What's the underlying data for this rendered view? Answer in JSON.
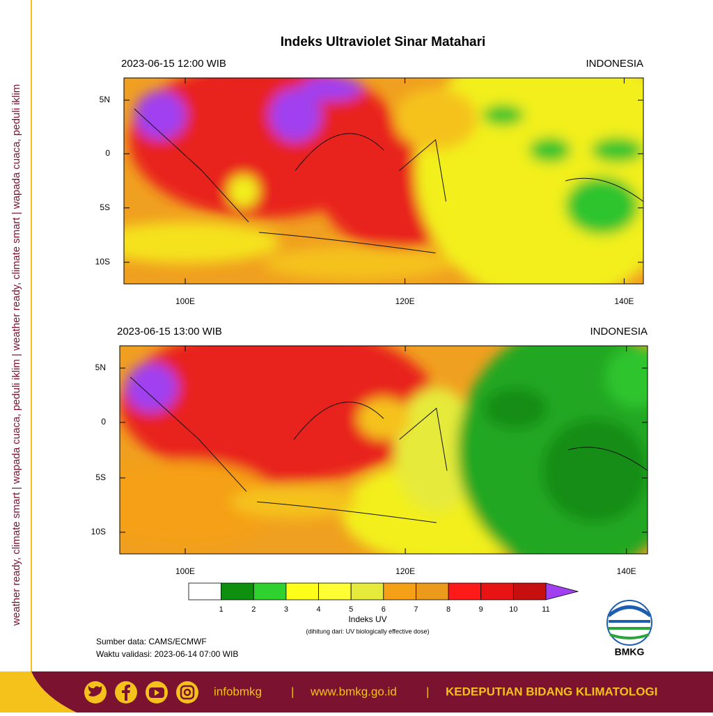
{
  "title": "Indeks Ultraviolet Sinar Matahari",
  "panels": [
    {
      "datetime": "2023-06-15  12:00 WIB",
      "region": "INDONESIA"
    },
    {
      "datetime": "2023-06-15  13:00 WIB",
      "region": "INDONESIA"
    }
  ],
  "lat_labels": [
    "5N",
    "0",
    "5S",
    "10S"
  ],
  "lon_labels": [
    "100E",
    "120E",
    "140E"
  ],
  "colorbar": {
    "colors": [
      "#ffffff",
      "#0e8f0e",
      "#2fd12f",
      "#ffff1a",
      "#ffff33",
      "#e6ea3a",
      "#f5a016",
      "#ec9a1c",
      "#ff1a1a",
      "#e81414",
      "#c80f0f",
      "#a040f0"
    ],
    "labels": [
      1,
      2,
      3,
      4,
      5,
      6,
      7,
      8,
      9,
      10,
      11
    ],
    "title": "Indeks UV",
    "subtitle": "(dihitung dari: UV biologically effective dose)"
  },
  "source": "Sumber data: CAMS/ECMWF",
  "validity": "Waktu validasi: 2023-06-14 07:00 WIB",
  "logo_text": "BMKG",
  "side_text": "weather ready, climate smart | wapada cuaca, peduli iklim | weather ready, climate smart | wapada cuaca, peduli iklim",
  "footer": {
    "handle": "infobmkg",
    "separator": "|",
    "website": "www.bmkg.go.id",
    "department": "KEDEPUTIAN BIDANG KLIMATOLOGI"
  }
}
